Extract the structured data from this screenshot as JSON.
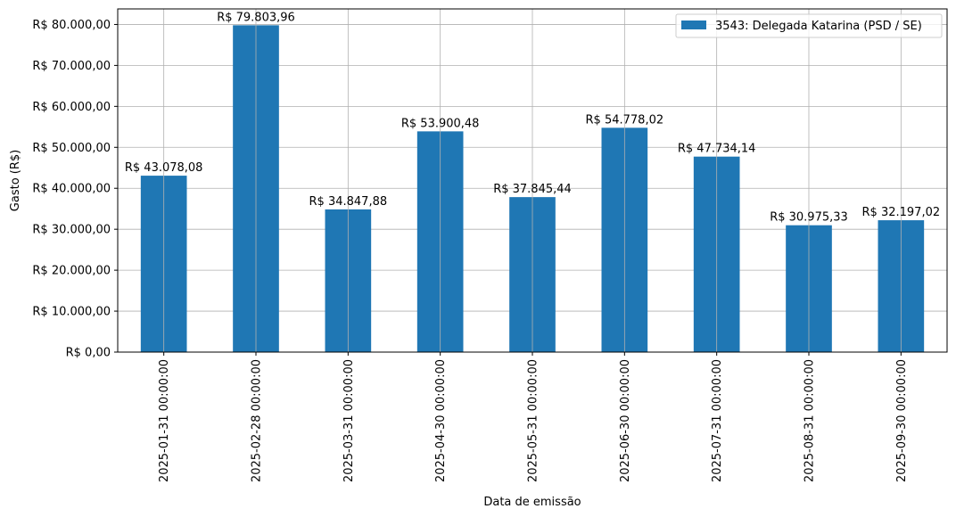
{
  "chart_data": {
    "type": "bar",
    "title": "",
    "xlabel": "Data de emissão",
    "ylabel": "Gasto (R$)",
    "ylim": [
      0,
      83800
    ],
    "grid": true,
    "legend_position": "top-right",
    "categories": [
      "2025-01-31 00:00:00",
      "2025-02-28 00:00:00",
      "2025-03-31 00:00:00",
      "2025-04-30 00:00:00",
      "2025-05-31 00:00:00",
      "2025-06-30 00:00:00",
      "2025-07-31 00:00:00",
      "2025-08-31 00:00:00",
      "2025-09-30 00:00:00"
    ],
    "series": [
      {
        "name": "3543: Delegada Katarina (PSD / SE)",
        "color": "#1f77b4",
        "values": [
          43078.08,
          79803.96,
          34847.88,
          53900.48,
          37845.44,
          54778.02,
          47734.14,
          30975.33,
          32197.02
        ],
        "value_labels": [
          "R$ 43.078,08",
          "R$ 79.803,96",
          "R$ 34.847,88",
          "R$ 53.900,48",
          "R$ 37.845,44",
          "R$ 54.778,02",
          "R$ 47.734,14",
          "R$ 30.975,33",
          "R$ 32.197,02"
        ]
      }
    ],
    "y_ticks": [
      0,
      10000,
      20000,
      30000,
      40000,
      50000,
      60000,
      70000,
      80000
    ],
    "y_tick_labels": [
      "R$ 0,00",
      "R$ 10.000,00",
      "R$ 20.000,00",
      "R$ 30.000,00",
      "R$ 40.000,00",
      "R$ 50.000,00",
      "R$ 60.000,00",
      "R$ 70.000,00",
      "R$ 80.000,00"
    ]
  }
}
